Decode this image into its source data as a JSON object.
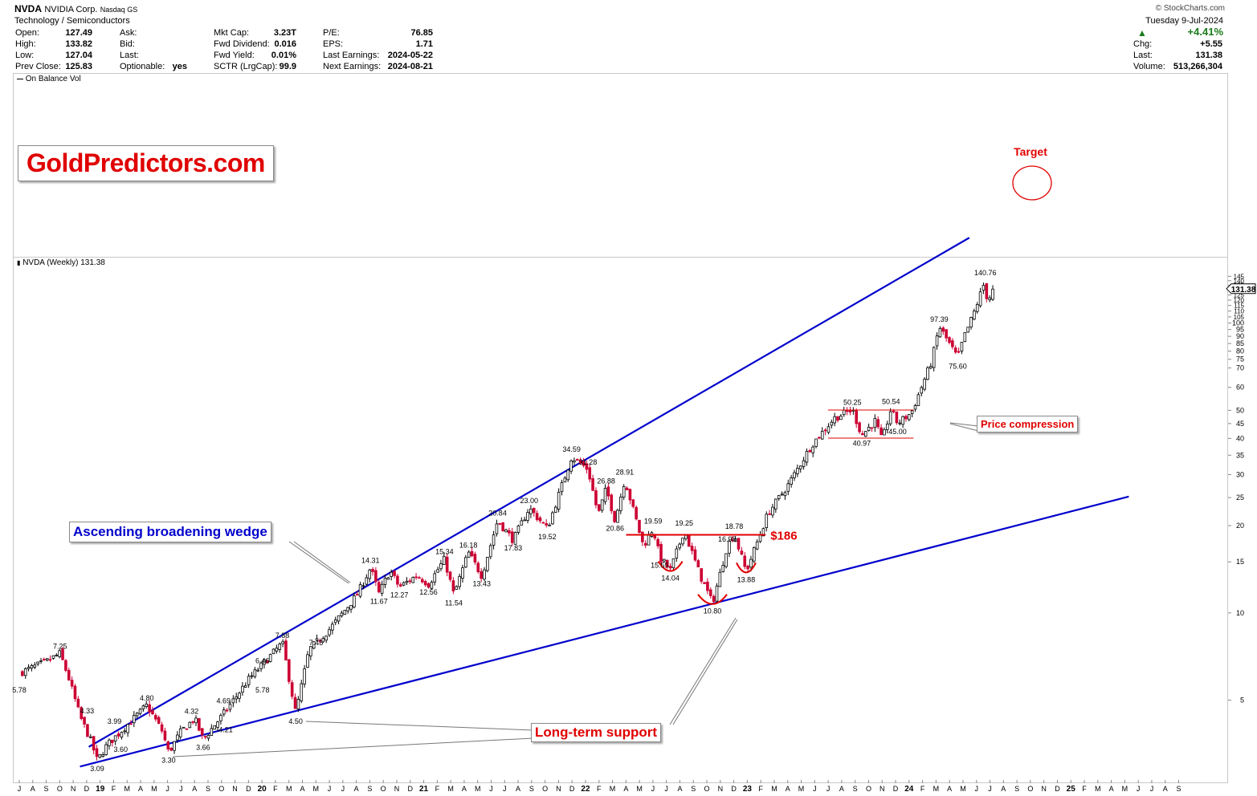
{
  "header": {
    "ticker": "NVDA",
    "company": "NVIDIA Corp.",
    "exchange": "Nasdaq GS",
    "sector": "Technology / Semiconductors",
    "source": "© StockCharts.com",
    "date": "Tuesday  9-Jul-2024",
    "col1": [
      [
        "Open:",
        "127.49"
      ],
      [
        "High:",
        "133.82"
      ],
      [
        "Low:",
        "127.04"
      ],
      [
        "Prev Close:",
        "125.83"
      ]
    ],
    "col2": [
      [
        "Ask:",
        ""
      ],
      [
        "Bid:",
        ""
      ],
      [
        "Last:",
        ""
      ],
      [
        "Optionable:",
        "yes"
      ]
    ],
    "col3": [
      [
        "Mkt Cap:",
        "3.23T"
      ],
      [
        "Fwd Dividend:",
        "0.016"
      ],
      [
        "Fwd Yield:",
        "0.01%"
      ],
      [
        "SCTR (LrgCap):",
        "99.9"
      ]
    ],
    "col4": [
      [
        "P/E:",
        "76.85"
      ],
      [
        "EPS:",
        "1.71"
      ],
      [
        "Last Earnings:",
        "2024-05-22"
      ],
      [
        "Next Earnings:",
        "2024-08-21"
      ]
    ],
    "change_pct": "+4.41%",
    "col5": [
      [
        "Chg:",
        "+5.55"
      ],
      [
        "Last:",
        "131.38"
      ],
      [
        "Volume:",
        "513,266,304"
      ]
    ]
  },
  "indicator_label": "On Balance Vol",
  "watermark": "GoldPredictors.com",
  "price_label": "NVDA (Weekly) 131.38",
  "last_price_tag": "131.38",
  "colors": {
    "up": "#000000",
    "down": "#cc0033",
    "trend": "#0000cc",
    "annot": "#e00000"
  },
  "chart_data": {
    "type": "candlestick",
    "scale": "log",
    "ylim": [
      2.9,
      150
    ],
    "y_ticks": [
      5,
      10,
      15,
      20,
      25,
      30,
      35,
      40,
      45,
      50,
      60,
      70,
      75,
      80,
      85,
      90,
      95,
      100,
      105,
      110,
      115,
      120,
      125,
      130,
      135,
      140,
      145
    ],
    "x_months": [
      "J",
      "A",
      "S",
      "O",
      "N",
      "D",
      "19",
      "F",
      "M",
      "A",
      "M",
      "J",
      "J",
      "A",
      "S",
      "O",
      "N",
      "D",
      "20",
      "F",
      "M",
      "A",
      "M",
      "J",
      "J",
      "A",
      "S",
      "O",
      "N",
      "D",
      "21",
      "F",
      "M",
      "A",
      "M",
      "J",
      "J",
      "A",
      "S",
      "O",
      "N",
      "D",
      "22",
      "F",
      "M",
      "A",
      "M",
      "J",
      "J",
      "A",
      "S",
      "O",
      "N",
      "D",
      "23",
      "F",
      "M",
      "A",
      "M",
      "J",
      "J",
      "A",
      "S",
      "O",
      "N",
      "D",
      "24",
      "F",
      "M",
      "A",
      "M",
      "J",
      "J",
      "A",
      "S",
      "O",
      "N",
      "D",
      "25",
      "F",
      "M",
      "A",
      "M",
      "J",
      "J",
      "A",
      "S"
    ],
    "start": "2018-07",
    "price_path": [
      [
        "2018-07-01",
        6.2
      ],
      [
        "2018-09-01",
        6.8
      ],
      [
        "2018-10-01",
        7.25
      ],
      [
        "2018-10-20",
        6.0
      ],
      [
        "2018-11-15",
        4.4
      ],
      [
        "2018-12-10",
        3.6
      ],
      [
        "2018-12-24",
        3.09
      ],
      [
        "2019-01-15",
        3.5
      ],
      [
        "2019-02-15",
        3.9
      ],
      [
        "2019-03-15",
        4.3
      ],
      [
        "2019-04-15",
        4.8
      ],
      [
        "2019-05-20",
        3.9
      ],
      [
        "2019-06-03",
        3.3
      ],
      [
        "2019-07-01",
        3.9
      ],
      [
        "2019-08-01",
        4.32
      ],
      [
        "2019-08-20",
        3.66
      ],
      [
        "2019-10-01",
        4.4
      ],
      [
        "2019-12-01",
        5.9
      ],
      [
        "2020-02-15",
        7.88
      ],
      [
        "2020-03-16",
        4.5
      ],
      [
        "2020-04-15",
        7.45
      ],
      [
        "2020-06-01",
        8.8
      ],
      [
        "2020-08-01",
        11.5
      ],
      [
        "2020-09-01",
        14.31
      ],
      [
        "2020-09-20",
        11.67
      ],
      [
        "2020-10-15",
        14.0
      ],
      [
        "2020-11-05",
        12.27
      ],
      [
        "2020-12-15",
        13.5
      ],
      [
        "2021-01-10",
        12.56
      ],
      [
        "2021-02-15",
        15.34
      ],
      [
        "2021-03-08",
        11.54
      ],
      [
        "2021-04-10",
        16.18
      ],
      [
        "2021-05-10",
        13.43
      ],
      [
        "2021-06-15",
        20.84
      ],
      [
        "2021-07-20",
        17.83
      ],
      [
        "2021-08-25",
        23.0
      ],
      [
        "2021-10-05",
        19.52
      ],
      [
        "2021-11-29",
        34.59
      ],
      [
        "2022-01-05",
        31.28
      ],
      [
        "2022-01-28",
        21.8
      ],
      [
        "2022-02-15",
        26.88
      ],
      [
        "2022-03-07",
        20.86
      ],
      [
        "2022-03-29",
        28.91
      ],
      [
        "2022-05-10",
        17.0
      ],
      [
        "2022-06-01",
        19.59
      ],
      [
        "2022-06-16",
        15.55
      ],
      [
        "2022-07-10",
        14.04
      ],
      [
        "2022-08-10",
        19.25
      ],
      [
        "2022-09-15",
        13.5
      ],
      [
        "2022-10-13",
        10.8
      ],
      [
        "2022-11-15",
        16.98
      ],
      [
        "2022-12-01",
        18.78
      ],
      [
        "2022-12-28",
        13.88
      ],
      [
        "2023-02-15",
        22.0
      ],
      [
        "2023-04-01",
        27.5
      ],
      [
        "2023-05-25",
        38.0
      ],
      [
        "2023-07-15",
        47.0
      ],
      [
        "2023-08-25",
        50.25
      ],
      [
        "2023-09-15",
        40.97
      ],
      [
        "2023-10-15",
        46.0
      ],
      [
        "2023-10-31",
        39.2
      ],
      [
        "2023-11-20",
        50.54
      ],
      [
        "2023-12-05",
        45.0
      ],
      [
        "2024-01-05",
        49.0
      ],
      [
        "2024-02-20",
        74.0
      ],
      [
        "2024-03-08",
        97.39
      ],
      [
        "2024-04-19",
        75.6
      ],
      [
        "2024-05-01",
        88.0
      ],
      [
        "2024-05-23",
        106.0
      ],
      [
        "2024-06-20",
        140.76
      ],
      [
        "2024-06-24",
        118.0
      ],
      [
        "2024-07-09",
        131.38
      ]
    ],
    "labels": [
      [
        "2018-07-01",
        5.78,
        "5.78",
        "below"
      ],
      [
        "2018-10-01",
        7.25,
        "7.25",
        "above"
      ],
      [
        "2018-12-01",
        4.33,
        "4.33",
        "above"
      ],
      [
        "2018-12-24",
        3.09,
        "3.09",
        "below"
      ],
      [
        "2019-02-01",
        3.99,
        "3.99",
        "above"
      ],
      [
        "2019-02-15",
        3.6,
        "3.60",
        "below"
      ],
      [
        "2019-04-15",
        4.8,
        "4.80",
        "above"
      ],
      [
        "2019-06-03",
        3.3,
        "3.30",
        "below"
      ],
      [
        "2019-07-25",
        4.32,
        "4.32",
        "above"
      ],
      [
        "2019-08-20",
        3.66,
        "3.66",
        "below"
      ],
      [
        "2019-10-05",
        4.69,
        "4.69",
        "above"
      ],
      [
        "2019-10-10",
        4.21,
        "4.21",
        "below"
      ],
      [
        "2020-01-01",
        6.46,
        "6.46",
        "above"
      ],
      [
        "2020-01-01",
        5.78,
        "5.78",
        "below"
      ],
      [
        "2020-02-15",
        7.88,
        "7.88",
        "above"
      ],
      [
        "2020-03-16",
        4.5,
        "4.50",
        "below"
      ],
      [
        "2020-05-01",
        7.45,
        "7.45",
        "above"
      ],
      [
        "2020-09-01",
        14.31,
        "14.31",
        "above"
      ],
      [
        "2020-09-20",
        11.67,
        "11.67",
        "below"
      ],
      [
        "2020-11-05",
        12.27,
        "12.27",
        "below"
      ],
      [
        "2021-01-10",
        12.56,
        "12.56",
        "below"
      ],
      [
        "2021-02-15",
        15.34,
        "15.34",
        "above"
      ],
      [
        "2021-03-08",
        11.54,
        "11.54",
        "below"
      ],
      [
        "2021-04-10",
        16.18,
        "16.18",
        "above"
      ],
      [
        "2021-05-10",
        13.43,
        "13.43",
        "below"
      ],
      [
        "2021-06-15",
        20.84,
        "20.84",
        "above"
      ],
      [
        "2021-07-20",
        17.83,
        "17.83",
        "below"
      ],
      [
        "2021-08-25",
        23.0,
        "23.00",
        "above"
      ],
      [
        "2021-10-05",
        19.52,
        "19.52",
        "below"
      ],
      [
        "2021-11-29",
        34.59,
        "34.59",
        "above"
      ],
      [
        "2022-01-05",
        31.28,
        "31.28",
        "above"
      ],
      [
        "2022-02-15",
        26.88,
        "26.88",
        "above"
      ],
      [
        "2022-03-29",
        28.91,
        "28.91",
        "above"
      ],
      [
        "2022-03-07",
        20.86,
        "20.86",
        "below"
      ],
      [
        "2022-06-01",
        19.59,
        "19.59",
        "above"
      ],
      [
        "2022-06-16",
        15.55,
        "15.55",
        "below"
      ],
      [
        "2022-07-10",
        14.04,
        "14.04",
        "below"
      ],
      [
        "2022-08-10",
        19.25,
        "19.25",
        "above"
      ],
      [
        "2022-10-13",
        10.8,
        "10.80",
        "below"
      ],
      [
        "2022-11-15",
        16.98,
        "16.98",
        "above"
      ],
      [
        "2022-12-01",
        18.78,
        "18.78",
        "above"
      ],
      [
        "2022-12-28",
        13.88,
        "13.88",
        "below"
      ],
      [
        "2023-08-25",
        50.25,
        "50.25",
        "above"
      ],
      [
        "2023-09-15",
        40.97,
        "40.97",
        "below"
      ],
      [
        "2023-11-20",
        50.54,
        "50.54",
        "above"
      ],
      [
        "2023-12-05",
        45.0,
        "45.00",
        "below"
      ],
      [
        "2024-03-08",
        97.39,
        "97.39",
        "above"
      ],
      [
        "2024-04-19",
        75.6,
        "75.60",
        "below"
      ],
      [
        "2024-06-20",
        140.76,
        "140.76",
        "above"
      ]
    ],
    "trendlines": [
      {
        "name": "upper",
        "from": [
          "2018-12-05",
          3.45
        ],
        "to": [
          "2024-05-15",
          197
        ]
      },
      {
        "name": "lower",
        "from": [
          "2018-11-15",
          2.95
        ],
        "to": [
          "2025-05-10",
          25.2
        ]
      }
    ],
    "level_186": {
      "from": "2022-04-01",
      "to": "2023-02-10",
      "value": 18.6,
      "label": "$186"
    },
    "compression": {
      "top": 50.1,
      "bottom": 40.1,
      "from": "2023-07-01",
      "to": "2024-01-10",
      "label": "Price compression"
    },
    "annotations": {
      "wedge": "Ascending broadening wedge",
      "support": "Long-term support",
      "target": "Target"
    }
  }
}
